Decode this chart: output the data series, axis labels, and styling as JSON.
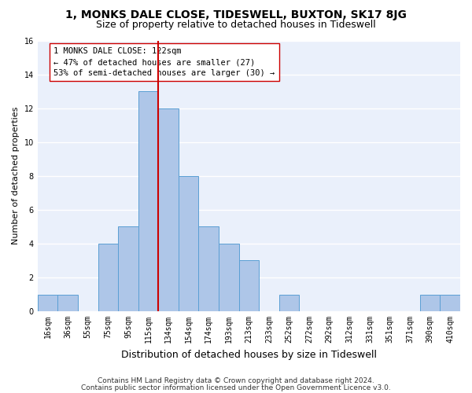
{
  "title": "1, MONKS DALE CLOSE, TIDESWELL, BUXTON, SK17 8JG",
  "subtitle": "Size of property relative to detached houses in Tideswell",
  "xlabel": "Distribution of detached houses by size in Tideswell",
  "ylabel": "Number of detached properties",
  "footer1": "Contains HM Land Registry data © Crown copyright and database right 2024.",
  "footer2": "Contains public sector information licensed under the Open Government Licence v3.0.",
  "bin_labels": [
    "16sqm",
    "36sqm",
    "55sqm",
    "75sqm",
    "95sqm",
    "115sqm",
    "134sqm",
    "154sqm",
    "174sqm",
    "193sqm",
    "213sqm",
    "233sqm",
    "252sqm",
    "272sqm",
    "292sqm",
    "312sqm",
    "331sqm",
    "351sqm",
    "371sqm",
    "390sqm",
    "410sqm"
  ],
  "bar_values": [
    1,
    1,
    0,
    4,
    5,
    13,
    12,
    8,
    5,
    4,
    3,
    0,
    1,
    0,
    0,
    0,
    0,
    0,
    0,
    1,
    1
  ],
  "bar_color": "#aec6e8",
  "bar_edgecolor": "#5a9fd4",
  "vline_x": 5.5,
  "vline_color": "#cc0000",
  "annotation_line1": "1 MONKS DALE CLOSE: 122sqm",
  "annotation_line2": "← 47% of detached houses are smaller (27)",
  "annotation_line3": "53% of semi-detached houses are larger (30) →",
  "annotation_box_color": "#ffffff",
  "annotation_box_edgecolor": "#cc0000",
  "ylim": [
    0,
    16
  ],
  "yticks": [
    0,
    2,
    4,
    6,
    8,
    10,
    12,
    14,
    16
  ],
  "bg_color": "#eaf0fb",
  "grid_color": "#ffffff",
  "title_fontsize": 10,
  "subtitle_fontsize": 9,
  "ylabel_fontsize": 8,
  "xlabel_fontsize": 9,
  "tick_fontsize": 7,
  "annotation_fontsize": 7.5,
  "footer_fontsize": 6.5
}
